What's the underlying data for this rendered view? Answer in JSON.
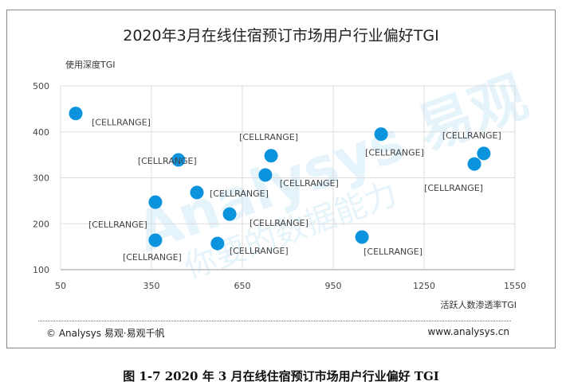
{
  "title": "2020年3月在线住宿预订市场用户行业偏好TGI",
  "footer": {
    "copyright": "© Analysys 易观·易观千帆",
    "site": "www.analysys.cn"
  },
  "caption": "图 1-7 2020 年 3 月在线住宿预订市场用户行业偏好 TGI",
  "watermark": "Analysys 易观 你要的数据能力",
  "chart_data": {
    "type": "scatter",
    "title": "2020年3月在线住宿预订市场用户行业偏好TGI",
    "xlabel": "活跃人数渗透率TGI",
    "ylabel": "使用深度TGI",
    "xlim": [
      50,
      1550
    ],
    "ylim": [
      100,
      500
    ],
    "xticks": [
      "50",
      "350",
      "650",
      "950",
      "1250",
      "1550"
    ],
    "yticks": [
      "100",
      "200",
      "300",
      "400",
      "500"
    ],
    "grid": true,
    "color": "#0b93de",
    "points": [
      {
        "x": 100,
        "y": 440,
        "label": "[CELLRANGE]"
      },
      {
        "x": 439,
        "y": 339,
        "label": "[CELLRANGE]"
      },
      {
        "x": 500,
        "y": 268,
        "label": "[CELLRANGE]"
      },
      {
        "x": 363,
        "y": 247,
        "label": "[CELLRANGE]"
      },
      {
        "x": 363,
        "y": 164,
        "label": "[CELLRANGE]"
      },
      {
        "x": 608,
        "y": 221,
        "label": "[CELLRANGE]"
      },
      {
        "x": 568,
        "y": 157,
        "label": "[CELLRANGE]"
      },
      {
        "x": 745,
        "y": 348,
        "label": "[CELLRANGE]"
      },
      {
        "x": 726,
        "y": 306,
        "label": "[CELLRANGE]"
      },
      {
        "x": 1108,
        "y": 395,
        "label": "[CELLRANGE]"
      },
      {
        "x": 1045,
        "y": 171,
        "label": "[CELLRANGE]"
      },
      {
        "x": 1447,
        "y": 353,
        "label": "[CELLRANGE]"
      },
      {
        "x": 1416,
        "y": 330,
        "label": "[CELLRANGE]"
      }
    ]
  }
}
